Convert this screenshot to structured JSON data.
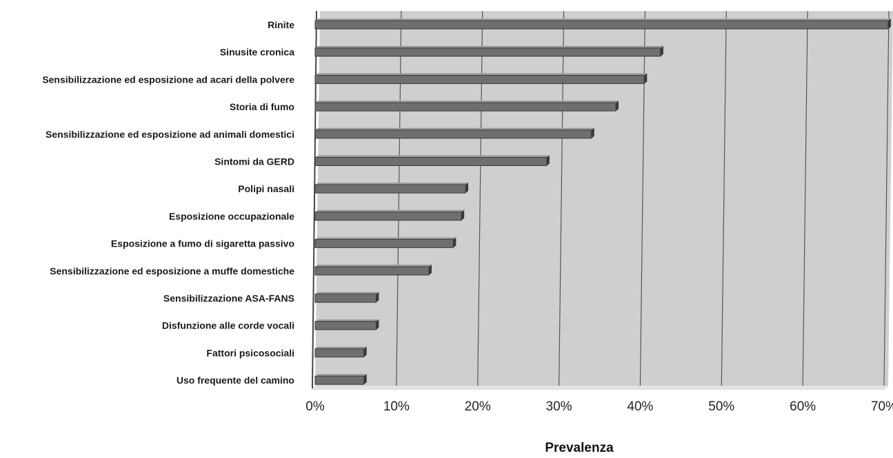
{
  "chart_data": {
    "type": "bar",
    "orientation": "horizontal",
    "categories": [
      "Rinite",
      "Sinusite cronica",
      "Sensibilizzazione ed esposizione ad acari della polvere",
      "Storia di fumo",
      "Sensibilizzazione ed esposizione ad animali domestici",
      "Sintomi da GERD",
      "Polipi nasali",
      "Esposizione occupazionale",
      "Esposizione a fumo di sigaretta passivo",
      "Sensibilizzazione ed esposizione a muffe domestiche",
      "Sensibilizzazione ASA-FANS",
      "Disfunzione alle corde vocali",
      "Fattori psicosociali",
      "Uso frequente del camino"
    ],
    "values": [
      70.5,
      42.5,
      40.5,
      37,
      34,
      28.5,
      18.5,
      18,
      17,
      14,
      7.5,
      7.5,
      6,
      6
    ],
    "xlabel": "Prevalenza",
    "ylabel": "",
    "xlim": [
      0,
      70
    ],
    "xticks": [
      "0%",
      "10%",
      "20%",
      "30%",
      "40%",
      "50%",
      "60%",
      "70%"
    ],
    "grid": true,
    "colors": {
      "bar": "#6f6f6f",
      "bar_top": "#9a9a9a",
      "bar_shadow": "#3a3a3a",
      "plot_bg": "#cfcfcf",
      "grid": "#555555"
    }
  }
}
